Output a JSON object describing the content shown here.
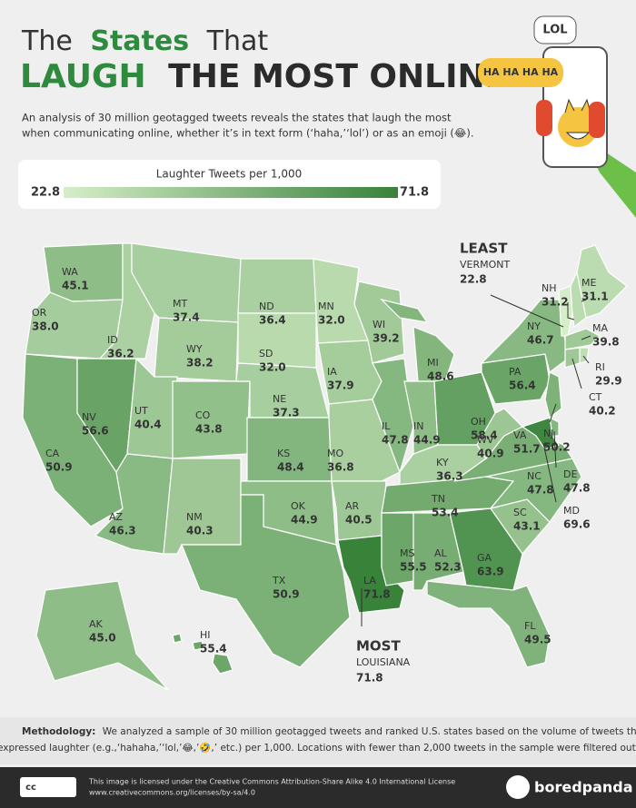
{
  "header": {
    "title_line1": [
      "The",
      "States",
      "That"
    ],
    "title_line2": [
      "LAUGH",
      "THE MOST ONLINE"
    ],
    "subtitle_lines": [
      "An analysis of 30 million geotagged tweets reveals the states that laugh the most",
      "when communicating online, whether it’s in text form (‘haha,’‘lol’) or as an emoji (😂)."
    ]
  },
  "badges": {
    "lol": "LOL",
    "ha": "HA HA HA HA"
  },
  "legend": {
    "title": "Laughter Tweets per 1,000",
    "min": 22.8,
    "max": 71.8
  },
  "states": [
    {
      "abbr": "WA",
      "value": 45.1
    },
    {
      "abbr": "OR",
      "value": 38,
      "label": "38.0"
    },
    {
      "abbr": "CA",
      "value": 50.9
    },
    {
      "abbr": "NV",
      "value": 56.6
    },
    {
      "abbr": "ID",
      "value": 36.2
    },
    {
      "abbr": "MT",
      "value": 37.4
    },
    {
      "abbr": "WY",
      "value": 38.2
    },
    {
      "abbr": "UT",
      "value": 40.4
    },
    {
      "abbr": "CO",
      "value": 43.8
    },
    {
      "abbr": "AZ",
      "value": 46.3
    },
    {
      "abbr": "NM",
      "value": 40.3
    },
    {
      "abbr": "ND",
      "value": 36.4
    },
    {
      "abbr": "SD",
      "value": 32,
      "label": "32.0"
    },
    {
      "abbr": "NE",
      "value": 37.3
    },
    {
      "abbr": "KS",
      "value": 48.4
    },
    {
      "abbr": "OK",
      "value": 44.9
    },
    {
      "abbr": "TX",
      "value": 50.9
    },
    {
      "abbr": "MN",
      "value": 32,
      "label": "32.0"
    },
    {
      "abbr": "IA",
      "value": 37.9
    },
    {
      "abbr": "MO",
      "value": 36.8
    },
    {
      "abbr": "AR",
      "value": 40.5
    },
    {
      "abbr": "LA",
      "value": 71.8
    },
    {
      "abbr": "WI",
      "value": 39.2
    },
    {
      "abbr": "IL",
      "value": 47.8
    },
    {
      "abbr": "MI",
      "value": 48.6
    },
    {
      "abbr": "IN",
      "value": 44.9
    },
    {
      "abbr": "OH",
      "value": 58.4
    },
    {
      "abbr": "KY",
      "value": 36.3
    },
    {
      "abbr": "TN",
      "value": 53.4
    },
    {
      "abbr": "MS",
      "value": 55.5
    },
    {
      "abbr": "AL",
      "value": 52.3
    },
    {
      "abbr": "GA",
      "value": 63.9
    },
    {
      "abbr": "FL",
      "value": 49.5
    },
    {
      "abbr": "SC",
      "value": 43.1
    },
    {
      "abbr": "NC",
      "value": 47.8
    },
    {
      "abbr": "VA",
      "value": 51.7
    },
    {
      "abbr": "WV",
      "value": 40.9
    },
    {
      "abbr": "PA",
      "value": 56.4
    },
    {
      "abbr": "NY",
      "value": 46.7
    },
    {
      "abbr": "VT",
      "value": 22.8
    },
    {
      "abbr": "NH",
      "value": 31.2
    },
    {
      "abbr": "ME",
      "value": 31.1
    },
    {
      "abbr": "MA",
      "value": 39.8
    },
    {
      "abbr": "RI",
      "value": 29.9
    },
    {
      "abbr": "CT",
      "value": 40.2
    },
    {
      "abbr": "NJ",
      "value": 50.2
    },
    {
      "abbr": "DE",
      "value": 47.8
    },
    {
      "abbr": "MD",
      "value": 69.6
    },
    {
      "abbr": "AK",
      "value": 45,
      "label": "45.0"
    },
    {
      "abbr": "HI",
      "value": 55.4
    }
  ],
  "callouts": {
    "least": {
      "label": "LEAST",
      "state": "VERMONT",
      "value": 22.8
    },
    "most": {
      "label": "MOST",
      "state": "LOUISIANA",
      "value": 71.8
    }
  },
  "methodology": {
    "label": "Methodology:",
    "lines": [
      "We analyzed a sample of 30 million geotagged tweets and ranked U.S. states based on the volume of tweets that",
      "expressed laughter (e.g.,‘hahaha,’‘lol,’😂,’🤣,’ etc.)  per 1,000. Locations with fewer than 2,000 tweets in the sample were filtered out."
    ]
  },
  "footer": {
    "license_lines": [
      "This image is licensed under the Creative Commons Attribution-Share Alike 4.0 International License",
      "www.creativecommons.org/licenses/by-sa/4.0"
    ],
    "cc": "cc",
    "brand": "boredpanda"
  }
}
